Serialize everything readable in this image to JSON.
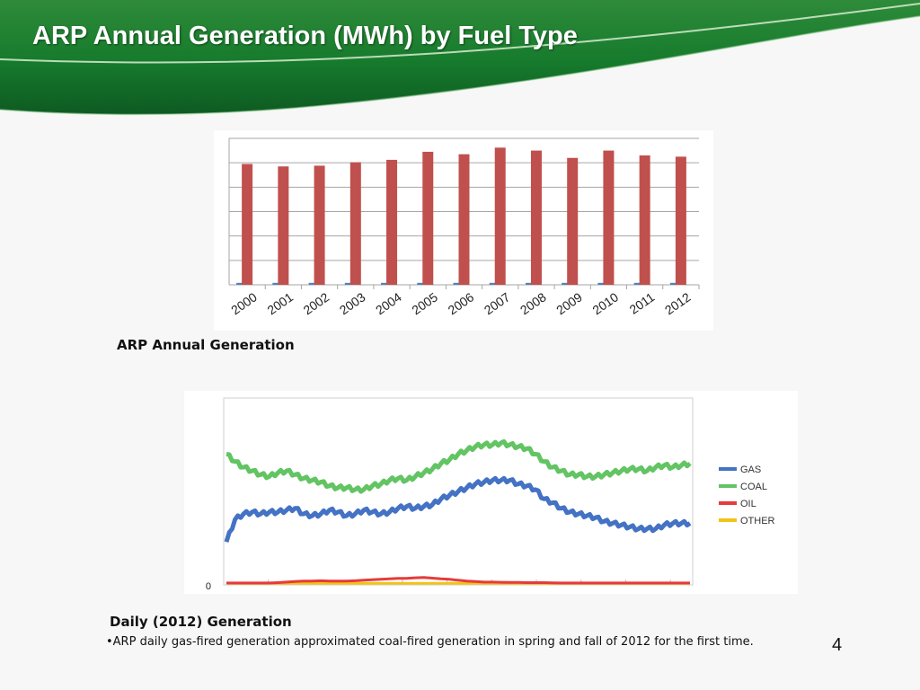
{
  "slide": {
    "title": "ARP Annual Generation (MWh) by Fuel Type",
    "page_number": "4",
    "annual_caption": "ARP Annual Generation",
    "daily_caption": "Daily (2012) Generation",
    "bullet": "•ARP daily gas-fired generation approximated coal-fired generation in spring and fall of 2012 for the first time."
  },
  "colors": {
    "banner_dark": "#0e5a22",
    "banner_light": "#2e8b3a",
    "bar_main": "#c0504d",
    "bar_minor": "#4f81bd",
    "gas": "#4472c4",
    "coal": "#62c462",
    "oil": "#e63b3b",
    "other": "#f2c318"
  },
  "chart_data": [
    {
      "type": "bar",
      "categories": [
        "2000",
        "2001",
        "2002",
        "2003",
        "2004",
        "2005",
        "2006",
        "2007",
        "2008",
        "2009",
        "2010",
        "2011",
        "2012"
      ],
      "series": [
        {
          "values": [
            0.8,
            0.8,
            0.8,
            0.8,
            0.8,
            0.8,
            0.8,
            0.8,
            0.8,
            0.8,
            0.8,
            0.8,
            0.8
          ]
        },
        {
          "values": [
            49.5,
            48.5,
            48.8,
            50.2,
            51.2,
            54.5,
            53.5,
            56.2,
            55.0,
            52.0,
            55.0,
            53.0,
            52.5
          ]
        }
      ],
      "ylim": [
        0,
        60
      ],
      "grid": true,
      "legend": "none"
    },
    {
      "type": "line",
      "ylim": [
        0,
        100
      ],
      "y_ticks": [
        "0"
      ],
      "grid": true,
      "legend": "right",
      "series": [
        {
          "name": "GAS",
          "values": [
            23,
            35,
            38,
            39,
            38,
            39,
            39,
            40,
            41,
            38,
            37,
            38,
            40,
            39,
            37,
            38,
            40,
            39,
            38,
            39,
            41,
            42,
            41,
            42,
            43,
            46,
            48,
            50,
            52,
            54,
            55,
            56,
            56,
            56,
            54,
            53,
            51,
            46,
            44,
            41,
            39,
            38,
            37,
            36,
            34,
            33,
            32,
            31,
            30,
            30,
            30,
            32,
            33,
            33,
            33
          ]
        },
        {
          "name": "COAL",
          "values": [
            70,
            66,
            63,
            61,
            59,
            58,
            60,
            61,
            59,
            57,
            56,
            55,
            53,
            52,
            52,
            51,
            51,
            53,
            54,
            56,
            57,
            56,
            58,
            60,
            62,
            65,
            67,
            70,
            72,
            74,
            75,
            75,
            76,
            75,
            74,
            73,
            70,
            66,
            63,
            61,
            59,
            59,
            58,
            58,
            59,
            60,
            61,
            62,
            62,
            61,
            63,
            64,
            63,
            64,
            65
          ]
        },
        {
          "name": "OIL",
          "values": [
            1,
            1,
            1,
            1,
            1,
            1,
            1.2,
            1.5,
            1.8,
            2,
            2,
            2.2,
            2,
            2,
            2,
            2.2,
            2.5,
            2.8,
            3,
            3.2,
            3.5,
            3.5,
            3.8,
            4,
            3.6,
            3.2,
            3,
            2.5,
            2,
            1.8,
            1.5,
            1.5,
            1.4,
            1.3,
            1.3,
            1.2,
            1.2,
            1.2,
            1.1,
            1,
            1,
            1,
            1,
            1,
            1,
            1,
            1,
            1,
            1,
            1,
            1,
            1,
            1,
            1,
            1
          ]
        },
        {
          "name": "OTHER",
          "values": [
            0.8,
            0.8,
            0.8,
            0.8,
            0.8,
            0.8,
            0.8,
            0.8,
            0.8,
            0.8,
            0.8,
            0.8,
            0.8,
            0.8,
            0.8,
            0.8,
            0.8,
            0.8,
            0.8,
            0.8,
            0.8,
            0.8,
            0.8,
            0.8,
            0.8,
            0.8,
            0.8,
            0.8,
            0.8,
            0.8,
            0.8,
            0.8,
            0.8,
            0.8,
            0.8,
            0.8,
            0.8,
            0.8,
            0.8,
            0.8,
            0.8,
            0.8,
            0.8,
            0.8,
            0.8,
            0.8,
            0.8,
            0.8,
            0.8,
            0.8,
            0.8,
            0.8,
            0.8,
            0.8,
            0.8
          ]
        }
      ]
    }
  ]
}
